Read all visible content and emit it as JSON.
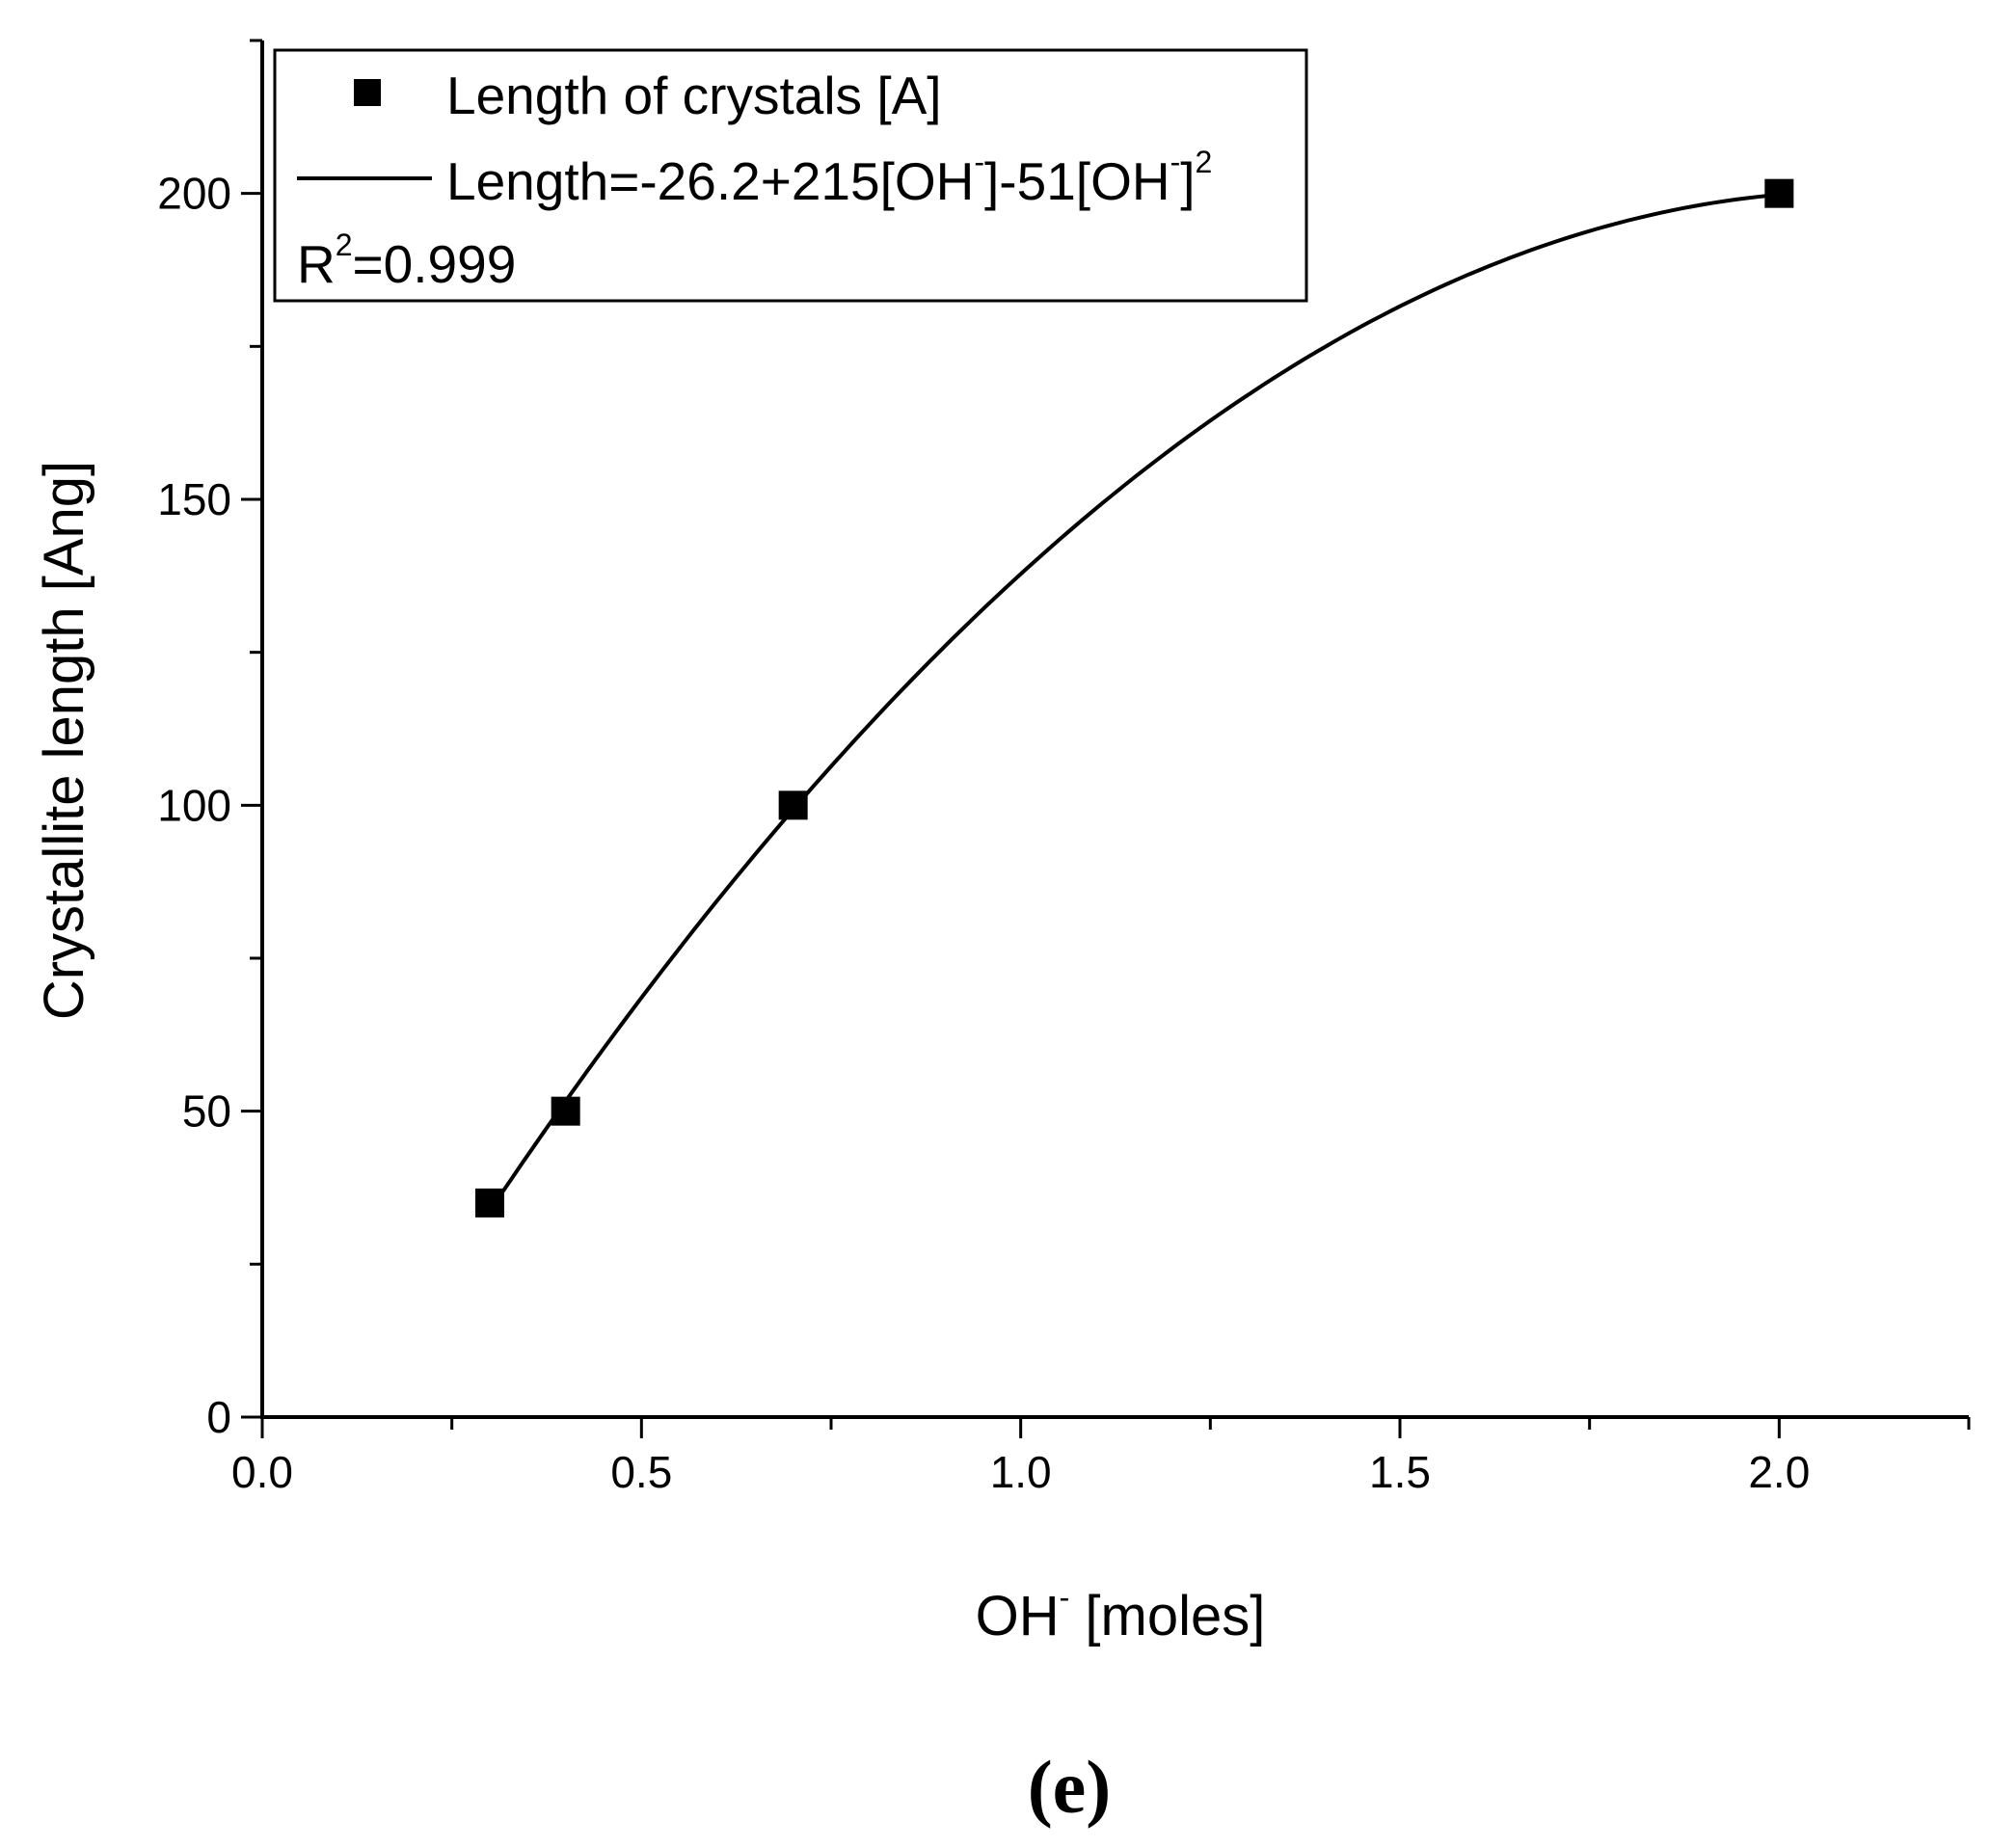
{
  "chart_data": {
    "type": "scatter",
    "series": [
      {
        "name": "Length of crystals [A]",
        "marker": "square",
        "x": [
          0.3,
          0.4,
          0.7,
          2.0
        ],
        "y": [
          35,
          50,
          100,
          200
        ]
      }
    ],
    "fit": {
      "name": "Length=-26.2+215[OH-]-51[OH-]2",
      "name_parts": [
        "Length=-26.2+215[OH",
        "-",
        "]-51[OH",
        "-",
        "]",
        "2"
      ],
      "coefficients": {
        "c0": -26.2,
        "c1": 215,
        "c2": -51
      },
      "x_range": [
        0.3,
        2.0
      ],
      "r2_label": [
        "R",
        "2",
        "=0.999"
      ]
    },
    "xlabel_parts": [
      "OH",
      "-",
      " [moles]"
    ],
    "ylabel": "Crystallite length [Ang]",
    "xlim": [
      0.0,
      2.25
    ],
    "ylim": [
      0,
      225
    ],
    "xticks": [
      "0.0",
      "0.5",
      "1.0",
      "1.5",
      "2.0"
    ],
    "yticks": [
      "0",
      "50",
      "100",
      "150",
      "200"
    ],
    "grid": false,
    "legend_position": "top-left",
    "panel_label": "(e)",
    "color": "#000000"
  }
}
